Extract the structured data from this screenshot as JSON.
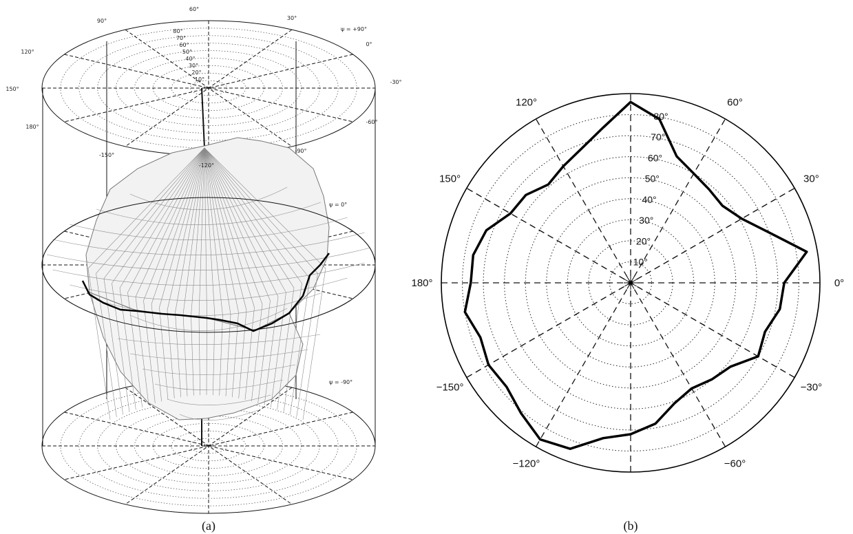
{
  "figure": {
    "panel_a_caption": "(a)",
    "panel_b_caption": "(b)"
  },
  "colors": {
    "line": "#000000",
    "grid": "#222222",
    "surface_fill": "#f2f2f2",
    "surface_mesh": "#8a8a8a"
  },
  "chart_data": [
    {
      "type": "3d-polar-surface",
      "panel": "(a)",
      "planes": [
        {
          "label": "ψ = +90°",
          "azimuth_labels": [
            "90°",
            "60°",
            "30°",
            "0°",
            "-30°",
            "-60°",
            "-90°",
            "-120°",
            "-150°",
            "180°",
            "150°",
            "120°"
          ],
          "radial_labels": [
            "10°",
            "20°",
            "30°",
            "40°",
            "50°",
            "60°",
            "70°",
            "80°"
          ]
        },
        {
          "label": "ψ = 0°"
        },
        {
          "label": "ψ = -90°"
        }
      ],
      "equatorial_cut": "bold contour at ψ = 0° (see panel b)"
    },
    {
      "type": "polar-line",
      "panel": "(b)",
      "r_range": [
        0,
        90
      ],
      "r_ticks": [
        10,
        20,
        30,
        40,
        50,
        60,
        70,
        80
      ],
      "r_tick_labels": [
        "10°",
        "20°",
        "30°",
        "40°",
        "50°",
        "60°",
        "70°",
        "80°"
      ],
      "angle_ticks": [
        0,
        30,
        60,
        120,
        150,
        180,
        -150,
        -120,
        -60,
        -30
      ],
      "angle_tick_labels": [
        "0°",
        "30°",
        "60°",
        "120°",
        "150°",
        "180°",
        "−150°",
        "−120°",
        "−60°",
        "−30°"
      ],
      "grid": "dotted circles every 10°, dashed spokes every 30°",
      "series": [
        {
          "theta": [
            0,
            10,
            20,
            30,
            40,
            50,
            60,
            70,
            80,
            90,
            100,
            110,
            120,
            130,
            140,
            150,
            160,
            170,
            180,
            190,
            200,
            210,
            220,
            230,
            240,
            250,
            260,
            270,
            280,
            290,
            300,
            310,
            320,
            330,
            340,
            350
          ],
          "r": [
            73,
            85,
            70,
            61,
            57,
            58,
            60,
            64,
            79,
            86,
            75,
            68,
            64,
            61,
            65,
            66,
            73,
            76,
            76,
            80,
            76,
            78,
            77,
            81,
            86,
            84,
            75,
            72,
            68,
            61,
            58,
            60,
            62,
            70,
            68,
            72
          ]
        }
      ]
    }
  ]
}
